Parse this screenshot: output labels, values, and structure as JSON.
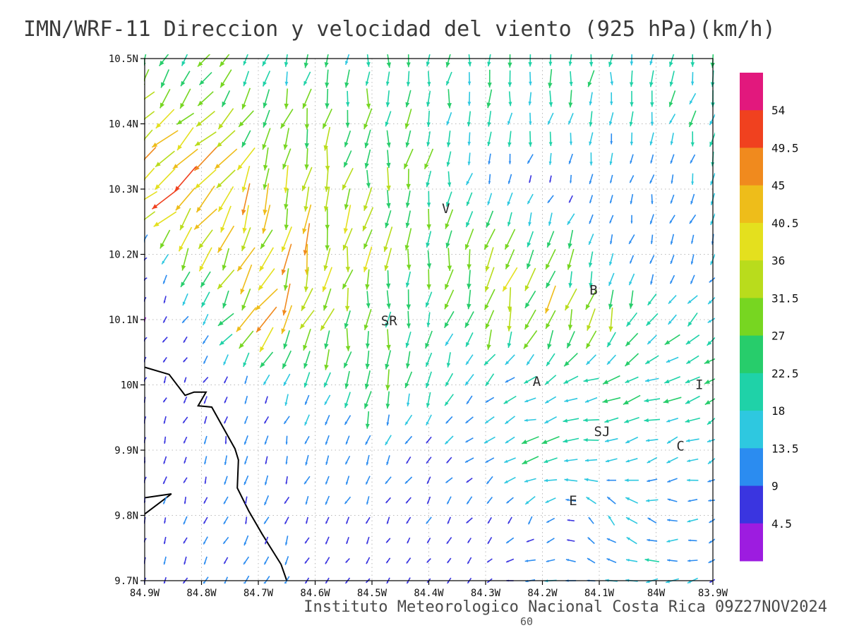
{
  "chart_data": {
    "type": "vector_field_map",
    "title": "IMN/WRF-11 Direccion y velocidad del viento (925 hPa)(km/h)",
    "footer": "Instituto Meteorologico Nacional Costa Rica 09Z27NOV2024",
    "figure_number": "60",
    "units": "km/h",
    "pressure_level": "925 hPa",
    "lon_range_w": [
      83.9,
      84.9
    ],
    "lat_range_n": [
      9.7,
      10.5
    ],
    "grid_on": true,
    "x_ticks": [
      {
        "lon": 84.9,
        "label": "84.9W"
      },
      {
        "lon": 84.8,
        "label": "84.8W"
      },
      {
        "lon": 84.7,
        "label": "84.7W"
      },
      {
        "lon": 84.6,
        "label": "84.6W"
      },
      {
        "lon": 84.5,
        "label": "84.5W"
      },
      {
        "lon": 84.4,
        "label": "84.4W"
      },
      {
        "lon": 84.3,
        "label": "84.3W"
      },
      {
        "lon": 84.2,
        "label": "84.2W"
      },
      {
        "lon": 84.1,
        "label": "84.1W"
      },
      {
        "lon": 84.0,
        "label": "84W"
      },
      {
        "lon": 83.9,
        "label": "83.9W"
      }
    ],
    "y_ticks": [
      {
        "lat": 10.5,
        "label": "10.5N"
      },
      {
        "lat": 10.4,
        "label": "10.4N"
      },
      {
        "lat": 10.3,
        "label": "10.3N"
      },
      {
        "lat": 10.2,
        "label": "10.2N"
      },
      {
        "lat": 10.1,
        "label": "10.1N"
      },
      {
        "lat": 10.0,
        "label": "10N"
      },
      {
        "lat": 9.9,
        "label": "9.9N"
      },
      {
        "lat": 9.8,
        "label": "9.8N"
      },
      {
        "lat": 9.7,
        "label": "9.7N"
      }
    ],
    "colorbar": {
      "position": "right",
      "levels": [
        4.5,
        9,
        13.5,
        18,
        22.5,
        27,
        31.5,
        36,
        40.5,
        45,
        49.5,
        54
      ],
      "labels": [
        "54",
        "49.5",
        "45",
        "40.5",
        "36",
        "31.5",
        "27",
        "22.5",
        "18",
        "13.5",
        "9",
        "4.5"
      ],
      "colors": [
        "#9d1ce0",
        "#3a35e0",
        "#2b8cf0",
        "#2ec8e0",
        "#1fd2a8",
        "#27cd6b",
        "#77d621",
        "#b9dc1c",
        "#e4e01e",
        "#eebd1a",
        "#f08a1e",
        "#f0411f",
        "#e2187d"
      ]
    },
    "stations": [
      {
        "label": "V",
        "lon": 84.37,
        "lat": 10.27
      },
      {
        "label": "B",
        "lon": 84.11,
        "lat": 10.145
      },
      {
        "label": "SR",
        "lon": 84.47,
        "lat": 10.098
      },
      {
        "label": "A",
        "lon": 84.21,
        "lat": 10.005
      },
      {
        "label": "SJ",
        "lon": 84.095,
        "lat": 9.928
      },
      {
        "label": "C",
        "lon": 83.957,
        "lat": 9.906
      },
      {
        "label": "E",
        "lon": 84.146,
        "lat": 9.822
      },
      {
        "label": "I",
        "lon": 83.924,
        "lat": 10.0
      }
    ],
    "coastline": [
      [
        [
          84.9,
          10.027
        ],
        [
          84.857,
          10.016
        ],
        [
          84.829,
          9.984
        ],
        [
          84.813,
          9.989
        ],
        [
          84.792,
          9.989
        ],
        [
          84.806,
          9.968
        ],
        [
          84.782,
          9.966
        ],
        [
          84.741,
          9.902
        ],
        [
          84.735,
          9.885
        ],
        [
          84.737,
          9.842
        ],
        [
          84.717,
          9.807
        ],
        [
          84.693,
          9.771
        ],
        [
          84.66,
          9.725
        ],
        [
          84.65,
          9.7
        ]
      ],
      [
        [
          84.9,
          9.827
        ],
        [
          84.853,
          9.833
        ],
        [
          84.9,
          9.802
        ]
      ]
    ],
    "wind_grid": {
      "comment": "u=eastward, v=northward components in km/h at 0.1 deg resolution; rows = lats top to bottom, cols = lons west to east",
      "lons": [
        84.9,
        84.8,
        84.7,
        84.6,
        84.5,
        84.4,
        84.3,
        84.2,
        84.1,
        84.0,
        83.9
      ],
      "lats": [
        10.5,
        10.4,
        10.3,
        10.2,
        10.1,
        10.0,
        9.9,
        9.8,
        9.7
      ],
      "uv": [
        [
          [
            -10,
            -22
          ],
          [
            -14,
            -22
          ],
          [
            -8,
            -20
          ],
          [
            -4,
            -20
          ],
          [
            -3,
            -21
          ],
          [
            -2,
            -22
          ],
          [
            -2,
            -20
          ],
          [
            -3,
            -20
          ],
          [
            -2,
            -22
          ],
          [
            -3,
            -20
          ],
          [
            -5,
            -21
          ]
        ],
        [
          [
            -22,
            -20
          ],
          [
            -24,
            -26
          ],
          [
            -11,
            -26
          ],
          [
            -5,
            -24
          ],
          [
            -3,
            -24
          ],
          [
            -3,
            -22
          ],
          [
            -3,
            -20
          ],
          [
            -4,
            -18
          ],
          [
            -3,
            -18
          ],
          [
            -4,
            -16
          ],
          [
            -5,
            -18
          ]
        ],
        [
          [
            -36,
            -32
          ],
          [
            -28,
            -32
          ],
          [
            -15,
            -35
          ],
          [
            -8,
            -30
          ],
          [
            -4,
            -28
          ],
          [
            -4,
            -24
          ],
          [
            -4,
            -12
          ],
          [
            -3,
            -7
          ],
          [
            -3,
            -9
          ],
          [
            -2,
            -10
          ],
          [
            -4,
            -12
          ]
        ],
        [
          [
            -4,
            -5
          ],
          [
            -14,
            -33
          ],
          [
            -12,
            -36
          ],
          [
            -10,
            -38
          ],
          [
            -5,
            -30
          ],
          [
            -4,
            -26
          ],
          [
            -8,
            -28
          ],
          [
            -12,
            -32
          ],
          [
            -4,
            -14
          ],
          [
            -3,
            -9
          ],
          [
            -5,
            -12
          ]
        ],
        [
          [
            -3,
            -4
          ],
          [
            -5,
            -8
          ],
          [
            -25,
            -32
          ],
          [
            -15,
            -35
          ],
          [
            0,
            -25
          ],
          [
            -5,
            -20
          ],
          [
            -8,
            -24
          ],
          [
            -10,
            -32
          ],
          [
            -6,
            -28
          ],
          [
            -12,
            -16
          ],
          [
            -14,
            -10
          ]
        ],
        [
          [
            -2,
            -5
          ],
          [
            -3,
            -6
          ],
          [
            -4,
            -8
          ],
          [
            -5,
            -15
          ],
          [
            -3,
            -27
          ],
          [
            -5,
            -18
          ],
          [
            -10,
            -10
          ],
          [
            -14,
            -8
          ],
          [
            -20,
            -6
          ],
          [
            -22,
            -5
          ],
          [
            -20,
            -8
          ]
        ],
        [
          [
            -2,
            -7
          ],
          [
            -3,
            -8
          ],
          [
            -2,
            -11
          ],
          [
            -4,
            -9
          ],
          [
            -5,
            -10
          ],
          [
            -6,
            -8
          ],
          [
            -10,
            -6
          ],
          [
            -24,
            -3
          ],
          [
            -18,
            -4
          ],
          [
            -15,
            -5
          ],
          [
            -12,
            -6
          ]
        ],
        [
          [
            -2,
            -6
          ],
          [
            -3,
            -8
          ],
          [
            -3,
            -9
          ],
          [
            -4,
            -8
          ],
          [
            -3,
            -6
          ],
          [
            -4,
            -7
          ],
          [
            -5,
            -6
          ],
          [
            -6,
            -10
          ],
          [
            -8,
            12
          ],
          [
            -14,
            4
          ],
          [
            -10,
            -3
          ]
        ],
        [
          [
            -3,
            -6
          ],
          [
            -4,
            -8
          ],
          [
            -6,
            -11
          ],
          [
            -3,
            -6
          ],
          [
            -4,
            -5
          ],
          [
            -3,
            -5
          ],
          [
            -4,
            -4
          ],
          [
            -16,
            0
          ],
          [
            -10,
            3
          ],
          [
            -18,
            -2
          ],
          [
            -8,
            -4
          ]
        ]
      ]
    }
  }
}
